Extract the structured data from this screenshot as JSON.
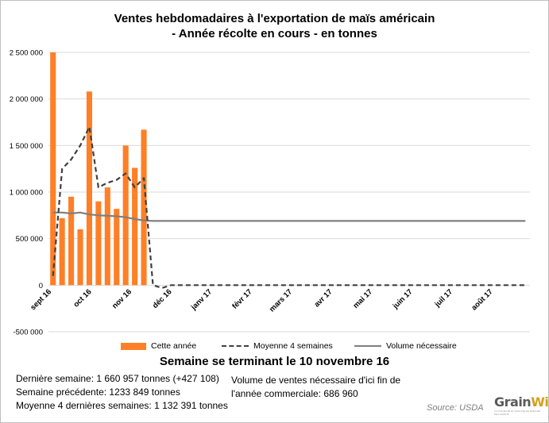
{
  "chart_data": {
    "type": "bar",
    "title_lines": [
      "Ventes hebdomadaires à l'exportation de maïs américain",
      "- Année récolte en cours - en tonnes"
    ],
    "ylim": [
      -500000,
      2500000
    ],
    "yticks": [
      -500000,
      0,
      500000,
      1000000,
      1500000,
      2000000,
      2500000
    ],
    "ytick_labels": [
      "-500 000",
      "0",
      "500 000",
      "1 000 000",
      "1 500 000",
      "2 000 000",
      "2 500 000"
    ],
    "x_labels": [
      "sept 16",
      "oct 16",
      "nov 16",
      "déc 16",
      "janv 17",
      "févr 17",
      "mars 17",
      "avr 17",
      "mai 17",
      "juin 17",
      "juil 17",
      "août 17"
    ],
    "weeks_total": 53,
    "series": [
      {
        "name": "Cette année",
        "kind": "bar",
        "color": "#ff7f27",
        "values": [
          2500000,
          720000,
          950000,
          600000,
          2080000,
          900000,
          1050000,
          820000,
          1500000,
          1260000,
          1670000
        ]
      },
      {
        "name": "Moyenne 4 semaines",
        "kind": "line-dashed",
        "color": "#404040",
        "values": [
          100000,
          1250000,
          1350000,
          1500000,
          1700000,
          1050000,
          1100000,
          1130000,
          1200000,
          1050000,
          1150000,
          0,
          -30000,
          0,
          0,
          0,
          0,
          0,
          0,
          0,
          0,
          0,
          0,
          0,
          0,
          0,
          0,
          0,
          0,
          0,
          0,
          0,
          0,
          0,
          0,
          0,
          0,
          0,
          0,
          0,
          0,
          0,
          0,
          0,
          0,
          0,
          0,
          0,
          0,
          0,
          0,
          0,
          0
        ]
      },
      {
        "name": "Volume nécessaire",
        "kind": "line",
        "color": "#7f7f7f",
        "values": [
          780000,
          780000,
          770000,
          780000,
          760000,
          750000,
          745000,
          740000,
          730000,
          710000,
          695000,
          690000,
          690000,
          690000,
          690000,
          690000,
          690000,
          690000,
          690000,
          690000,
          690000,
          690000,
          690000,
          690000,
          690000,
          690000,
          690000,
          690000,
          690000,
          690000,
          690000,
          690000,
          690000,
          690000,
          690000,
          690000,
          690000,
          690000,
          690000,
          690000,
          690000,
          690000,
          690000,
          690000,
          690000,
          690000,
          690000,
          690000,
          690000,
          690000,
          690000,
          690000,
          690000
        ]
      }
    ],
    "grid": true,
    "legend": "bottom"
  },
  "summary": {
    "heading": "Semaine se terminant le 10 novembre 16",
    "last_week": "Dernière semaine: 1 660 957 tonnes (+427 108)",
    "previous_week": "Semaine précédente: 1233 849 tonnes",
    "avg_4_weeks": "Moyenne 4 dernières semaines: 1 132 391 tonnes",
    "needed_line1": "Volume de ventes nécessaire d'ici fin de",
    "needed_line2": "l'année commerciale: 686 960",
    "source": "Source: USDA"
  },
  "logo": {
    "name_part1": "Grain",
    "name_part2": "Wiz",
    "tagline": "LA COLLECTE ET ANALYSE DE MARCHÉ DES GRAINS"
  }
}
